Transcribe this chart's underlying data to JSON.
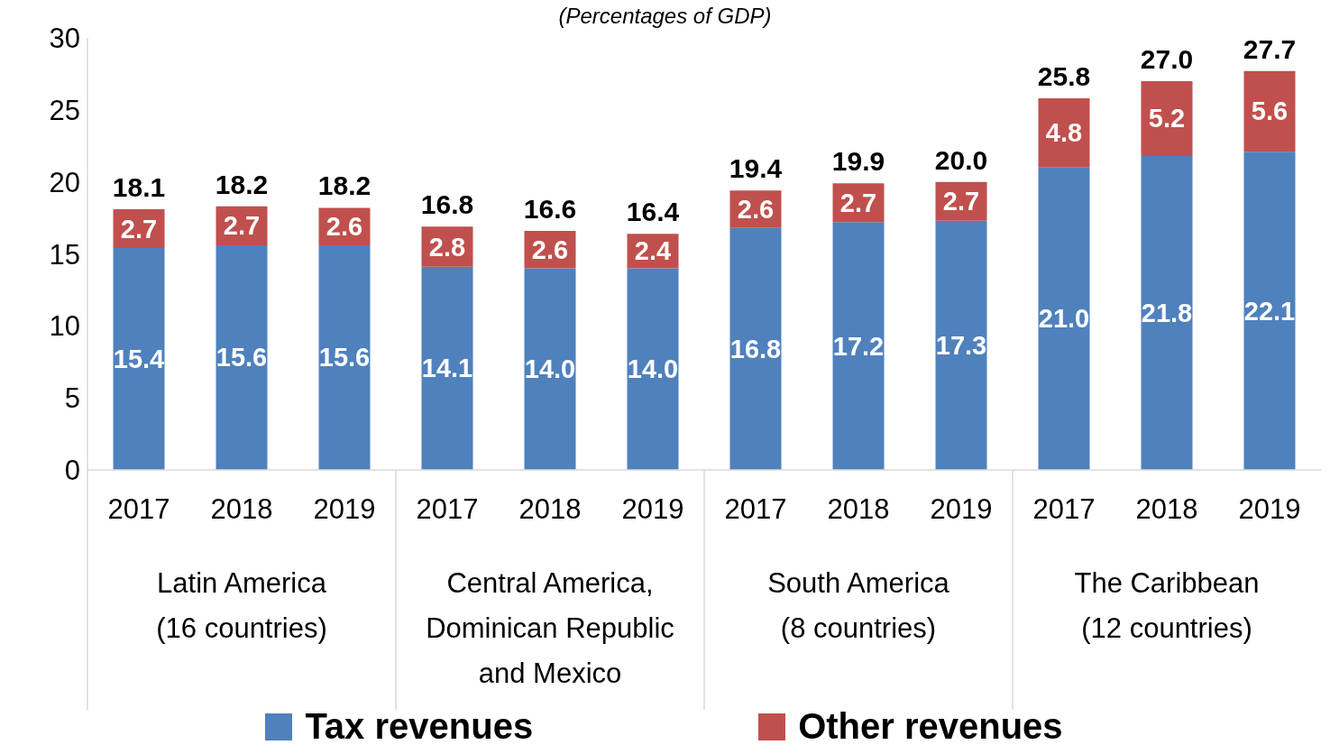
{
  "chart_data": {
    "type": "bar",
    "subtitle": "(Percentages of GDP)",
    "stacked": true,
    "categories": [
      "2017",
      "2018",
      "2019",
      "2017",
      "2018",
      "2019",
      "2017",
      "2018",
      "2019",
      "2017",
      "2018",
      "2019"
    ],
    "series": [
      {
        "name": "Tax revenues",
        "color": "#4f81bd",
        "values": [
          15.4,
          15.6,
          15.6,
          14.1,
          14.0,
          14.0,
          16.8,
          17.2,
          17.3,
          21.0,
          21.8,
          22.1
        ],
        "value_labels": [
          "15.4",
          "15.6",
          "15.6",
          "14.1",
          "14.0",
          "14.0",
          "16.8",
          "17.2",
          "17.3",
          "21.0",
          "21.8",
          "22.1"
        ]
      },
      {
        "name": "Other revenues",
        "color": "#c0504d",
        "values": [
          2.7,
          2.7,
          2.6,
          2.8,
          2.6,
          2.4,
          2.6,
          2.7,
          2.7,
          4.8,
          5.2,
          5.6
        ],
        "value_labels": [
          "2.7",
          "2.7",
          "2.6",
          "2.8",
          "2.6",
          "2.4",
          "2.6",
          "2.7",
          "2.7",
          "4.8",
          "5.2",
          "5.6"
        ]
      }
    ],
    "totals": [
      "18.1",
      "18.2",
      "18.2",
      "16.8",
      "16.6",
      "16.4",
      "19.4",
      "19.9",
      "20.0",
      "25.8",
      "27.0",
      "27.7"
    ],
    "annotations": [
      "Latin America (16 countries)",
      "Central America, Dominican Republic and Mexico",
      "South America (8 countries)",
      "The Caribbean (12 countries)"
    ],
    "ylim": [
      0,
      30
    ],
    "yticks": [
      0,
      5,
      10,
      15,
      20,
      25,
      30
    ],
    "legend": "bottom"
  }
}
